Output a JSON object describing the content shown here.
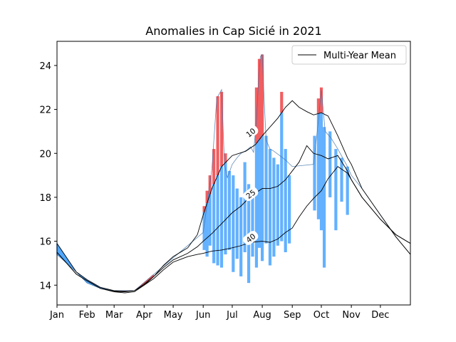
{
  "chart_data": {
    "type": "line",
    "title": "Anomalies in Cap Sicié in 2021",
    "xlabel": "",
    "ylabel": "",
    "xlim": [
      0,
      365
    ],
    "ylim": [
      13.1,
      25.1
    ],
    "months": [
      "Jan",
      "Feb",
      "Mar",
      "Apr",
      "May",
      "Jun",
      "Jul",
      "Aug",
      "Sep",
      "Oct",
      "Nov",
      "Dec"
    ],
    "month_days": [
      0,
      31,
      59,
      90,
      120,
      151,
      181,
      212,
      243,
      273,
      304,
      334
    ],
    "y_ticks": [
      14,
      16,
      18,
      20,
      22,
      24
    ],
    "legend": {
      "label": "Multi-Year Mean",
      "position": "top-right"
    },
    "colors": {
      "warm": "#f0484a",
      "cold": "#4da6ff",
      "mean": "#000000"
    },
    "series": [
      {
        "depth_label": "10",
        "label_at": [
          200,
          20.95
        ],
        "label_angle": -38,
        "mean": [
          [
            0,
            15.9
          ],
          [
            20,
            14.6
          ],
          [
            31,
            14.25
          ],
          [
            45,
            13.9
          ],
          [
            59,
            13.75
          ],
          [
            70,
            13.72
          ],
          [
            80,
            13.75
          ],
          [
            90,
            14.0
          ],
          [
            100,
            14.4
          ],
          [
            110,
            14.9
          ],
          [
            120,
            15.3
          ],
          [
            135,
            15.7
          ],
          [
            145,
            16.3
          ],
          [
            151,
            17.2
          ],
          [
            160,
            18.4
          ],
          [
            170,
            19.4
          ],
          [
            181,
            19.9
          ],
          [
            195,
            20.1
          ],
          [
            205,
            20.4
          ],
          [
            212,
            20.8
          ],
          [
            220,
            21.2
          ],
          [
            228,
            21.6
          ],
          [
            236,
            22.1
          ],
          [
            243,
            22.4
          ],
          [
            250,
            22.1
          ],
          [
            258,
            21.9
          ],
          [
            265,
            21.75
          ],
          [
            273,
            21.85
          ],
          [
            280,
            21.7
          ],
          [
            290,
            20.8
          ],
          [
            300,
            19.8
          ],
          [
            304,
            19.5
          ],
          [
            315,
            18.4
          ],
          [
            334,
            17.2
          ],
          [
            350,
            16.2
          ],
          [
            365,
            15.4
          ]
        ],
        "obs": [
          [
            0,
            15.4
          ],
          [
            10,
            15.0
          ],
          [
            20,
            14.6
          ],
          [
            31,
            14.1
          ],
          [
            45,
            13.85
          ],
          [
            59,
            13.75
          ],
          [
            80,
            13.75
          ],
          [
            151,
            16.4
          ],
          [
            156,
            18.0
          ],
          [
            160,
            19.3
          ],
          [
            165,
            22.5
          ],
          [
            170,
            22.9
          ],
          [
            173,
            19.5
          ],
          [
            176,
            18.9
          ],
          [
            181,
            19.5
          ],
          [
            186,
            19.8
          ],
          [
            190,
            20.0
          ],
          [
            196,
            20.15
          ],
          [
            200,
            20.3
          ],
          [
            203,
            20.05
          ],
          [
            206,
            21.5
          ],
          [
            208,
            23.2
          ],
          [
            210,
            24.4
          ],
          [
            212,
            24.5
          ],
          [
            214,
            22.4
          ],
          [
            216,
            20.6
          ],
          [
            220,
            20.2
          ],
          [
            224,
            20.1
          ],
          [
            230,
            19.9
          ],
          [
            236,
            19.7
          ],
          [
            243,
            19.4
          ],
          [
            265,
            19.5
          ],
          [
            270,
            21.5
          ],
          [
            273,
            22.9
          ],
          [
            277,
            21.0
          ],
          [
            283,
            20.7
          ],
          [
            290,
            20.2
          ],
          [
            300,
            19.4
          ],
          [
            304,
            19.0
          ],
          [
            315,
            18.4
          ],
          [
            334,
            17.2
          ],
          [
            350,
            16.2
          ],
          [
            365,
            15.4
          ]
        ]
      },
      {
        "depth_label": "25",
        "label_at": [
          200,
          18.15
        ],
        "label_angle": -38,
        "mean": [
          [
            0,
            15.5
          ],
          [
            20,
            14.5
          ],
          [
            31,
            14.2
          ],
          [
            45,
            13.85
          ],
          [
            59,
            13.72
          ],
          [
            70,
            13.7
          ],
          [
            80,
            13.75
          ],
          [
            90,
            14.05
          ],
          [
            100,
            14.4
          ],
          [
            110,
            14.8
          ],
          [
            120,
            15.15
          ],
          [
            135,
            15.45
          ],
          [
            145,
            15.75
          ],
          [
            151,
            16.0
          ],
          [
            160,
            16.35
          ],
          [
            170,
            16.8
          ],
          [
            181,
            17.3
          ],
          [
            190,
            17.6
          ],
          [
            200,
            18.05
          ],
          [
            212,
            18.4
          ],
          [
            220,
            18.4
          ],
          [
            228,
            18.5
          ],
          [
            236,
            18.8
          ],
          [
            243,
            19.2
          ],
          [
            250,
            19.6
          ],
          [
            258,
            20.35
          ],
          [
            265,
            20.0
          ],
          [
            273,
            19.9
          ],
          [
            280,
            19.75
          ],
          [
            290,
            19.9
          ],
          [
            300,
            19.2
          ],
          [
            304,
            18.8
          ],
          [
            315,
            18.0
          ],
          [
            334,
            17.0
          ],
          [
            350,
            16.3
          ],
          [
            365,
            15.9
          ]
        ]
      },
      {
        "depth_label": "40",
        "label_at": [
          200,
          16.15
        ],
        "label_angle": -38,
        "mean": [
          [
            0,
            15.5
          ],
          [
            20,
            14.5
          ],
          [
            31,
            14.2
          ],
          [
            45,
            13.85
          ],
          [
            59,
            13.7
          ],
          [
            70,
            13.65
          ],
          [
            80,
            13.7
          ],
          [
            90,
            14.0
          ],
          [
            100,
            14.3
          ],
          [
            110,
            14.7
          ],
          [
            120,
            15.05
          ],
          [
            135,
            15.3
          ],
          [
            145,
            15.4
          ],
          [
            151,
            15.45
          ],
          [
            160,
            15.55
          ],
          [
            170,
            15.6
          ],
          [
            181,
            15.7
          ],
          [
            190,
            15.8
          ],
          [
            200,
            15.95
          ],
          [
            212,
            16.0
          ],
          [
            220,
            15.95
          ],
          [
            228,
            16.1
          ],
          [
            236,
            16.4
          ],
          [
            243,
            16.6
          ],
          [
            250,
            17.1
          ],
          [
            258,
            17.6
          ],
          [
            265,
            17.95
          ],
          [
            273,
            18.3
          ],
          [
            280,
            18.85
          ],
          [
            290,
            19.4
          ],
          [
            300,
            19.1
          ],
          [
            304,
            18.8
          ],
          [
            315,
            18.0
          ],
          [
            334,
            17.0
          ],
          [
            350,
            16.3
          ],
          [
            365,
            15.9
          ]
        ]
      }
    ],
    "spikes_10m": [
      {
        "x": 152,
        "lo": 15.6,
        "hi": 17.6
      },
      {
        "x": 155,
        "lo": 15.3,
        "hi": 18.3
      },
      {
        "x": 158,
        "lo": 15.8,
        "hi": 19.0
      },
      {
        "x": 162,
        "lo": 15.0,
        "hi": 20.2
      },
      {
        "x": 166,
        "lo": 14.9,
        "hi": 22.6
      },
      {
        "x": 170,
        "lo": 14.8,
        "hi": 22.8
      },
      {
        "x": 174,
        "lo": 15.4,
        "hi": 20.0
      },
      {
        "x": 178,
        "lo": 15.6,
        "hi": 19.2
      },
      {
        "x": 182,
        "lo": 14.6,
        "hi": 19.0
      },
      {
        "x": 186,
        "lo": 15.2,
        "hi": 18.4
      },
      {
        "x": 190,
        "lo": 14.4,
        "hi": 18.0
      },
      {
        "x": 194,
        "lo": 15.5,
        "hi": 19.6
      },
      {
        "x": 198,
        "lo": 14.1,
        "hi": 18.6
      },
      {
        "x": 202,
        "lo": 15.3,
        "hi": 18.2
      },
      {
        "x": 206,
        "lo": 14.8,
        "hi": 23.0
      },
      {
        "x": 209,
        "lo": 15.7,
        "hi": 24.3
      },
      {
        "x": 212,
        "lo": 15.1,
        "hi": 24.5
      },
      {
        "x": 216,
        "lo": 15.9,
        "hi": 20.8
      },
      {
        "x": 220,
        "lo": 14.9,
        "hi": 20.2
      },
      {
        "x": 224,
        "lo": 15.3,
        "hi": 19.8
      },
      {
        "x": 228,
        "lo": 15.8,
        "hi": 19.5
      },
      {
        "x": 232,
        "lo": 16.0,
        "hi": 22.8
      },
      {
        "x": 236,
        "lo": 15.5,
        "hi": 20.2
      },
      {
        "x": 240,
        "lo": 15.9,
        "hi": 19.0
      },
      {
        "x": 266,
        "lo": 17.4,
        "hi": 20.8
      },
      {
        "x": 270,
        "lo": 17.0,
        "hi": 22.5
      },
      {
        "x": 273,
        "lo": 16.5,
        "hi": 23.0
      },
      {
        "x": 276,
        "lo": 14.8,
        "hi": 21.2
      },
      {
        "x": 282,
        "lo": 18.0,
        "hi": 21.0
      },
      {
        "x": 288,
        "lo": 16.5,
        "hi": 20.2
      },
      {
        "x": 294,
        "lo": 17.8,
        "hi": 19.8
      },
      {
        "x": 300,
        "lo": 17.2,
        "hi": 19.4
      }
    ]
  }
}
